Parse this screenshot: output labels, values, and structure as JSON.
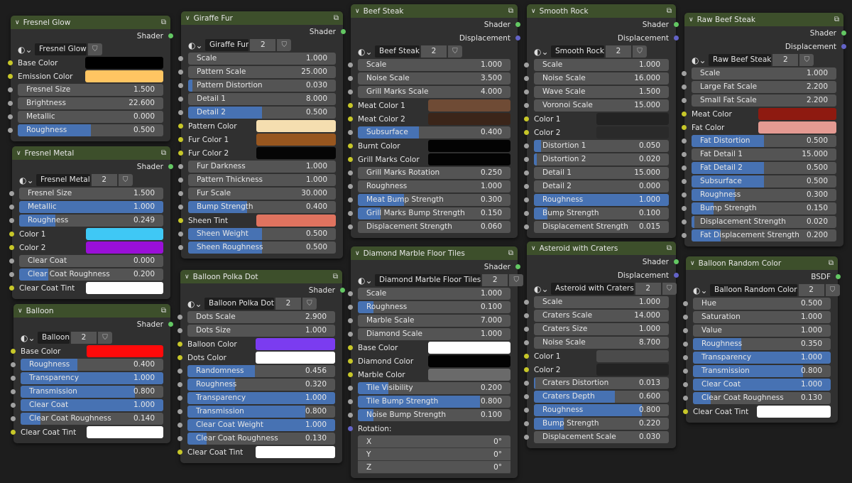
{
  "socket_colors": {
    "float": "#a1a1a1",
    "color": "#c7c729",
    "shader": "#63c763",
    "vector": "#6363c7"
  },
  "accent": "#4772b3",
  "nodes": [
    {
      "title": "Fresnel Glow",
      "outputs": [
        "Shader"
      ],
      "datablock": {
        "name": "Fresnel Glow"
      },
      "rows": [
        {
          "t": "c",
          "l": "Base Color",
          "c": "#000000"
        },
        {
          "t": "c",
          "l": "Emission Color",
          "c": "#ffc562"
        },
        {
          "t": "v",
          "l": "Fresnel Size",
          "v": "1.500"
        },
        {
          "t": "v",
          "l": "Brightness",
          "v": "22.600"
        },
        {
          "t": "v",
          "l": "Metallic",
          "v": "0.000"
        },
        {
          "t": "v",
          "l": "Roughness",
          "v": "0.500",
          "f": 0.5
        }
      ]
    },
    {
      "title": "Fresnel Metal",
      "outputs": [
        "Shader"
      ],
      "datablock": {
        "name": "Fresnel Metal",
        "users": "2"
      },
      "rows": [
        {
          "t": "v",
          "l": "Fresnel Size",
          "v": "1.500"
        },
        {
          "t": "v",
          "l": "Metallic",
          "v": "1.000",
          "f": 1
        },
        {
          "t": "v",
          "l": "Roughness",
          "v": "0.249",
          "f": 0.249
        },
        {
          "t": "c",
          "l": "Color 1",
          "c": "#3fc8f5"
        },
        {
          "t": "c",
          "l": "Color 2",
          "c": "#9a0fd8"
        },
        {
          "t": "v",
          "l": "Clear Coat",
          "v": "0.000"
        },
        {
          "t": "v",
          "l": "Clear Coat Roughness",
          "v": "0.200",
          "f": 0.2
        },
        {
          "t": "c",
          "l": "Clear Coat Tint",
          "c": "#ffffff"
        }
      ]
    },
    {
      "title": "Balloon",
      "outputs": [
        "Shader"
      ],
      "datablock": {
        "name": "Balloon",
        "users": "2"
      },
      "rows": [
        {
          "t": "c",
          "l": "Base Color",
          "c": "#ff0a0a"
        },
        {
          "t": "v",
          "l": "Roughness",
          "v": "0.400",
          "f": 0.4
        },
        {
          "t": "v",
          "l": "Transparency",
          "v": "1.000",
          "f": 1
        },
        {
          "t": "v",
          "l": "Transmission",
          "v": "0.800",
          "f": 0.8
        },
        {
          "t": "v",
          "l": "Clear Coat",
          "v": "1.000",
          "f": 1
        },
        {
          "t": "v",
          "l": "Clear Coat Roughness",
          "v": "0.140",
          "f": 0.14
        },
        {
          "t": "c",
          "l": "Clear Coat Tint",
          "c": "#ffffff"
        }
      ]
    },
    {
      "title": "Giraffe Fur",
      "outputs": [
        "Shader"
      ],
      "datablock": {
        "name": "Giraffe Fur",
        "users": "2"
      },
      "rows": [
        {
          "t": "v",
          "l": "Scale",
          "v": "1.000"
        },
        {
          "t": "v",
          "l": "Pattern Scale",
          "v": "25.000"
        },
        {
          "t": "v",
          "l": "Pattern Distortion",
          "v": "0.030",
          "f": 0.03
        },
        {
          "t": "v",
          "l": "Detail 1",
          "v": "8.000"
        },
        {
          "t": "v",
          "l": "Detail 2",
          "v": "0.500",
          "f": 0.5
        },
        {
          "t": "c",
          "l": "Pattern Color",
          "c": "#f5deb0"
        },
        {
          "t": "c",
          "l": "Fur Color 1",
          "c": "#97561f"
        },
        {
          "t": "c",
          "l": "Fur Color 2",
          "c": "#050505"
        },
        {
          "t": "v",
          "l": "Fur Darkness",
          "v": "1.000"
        },
        {
          "t": "v",
          "l": "Pattern Thickness",
          "v": "1.000"
        },
        {
          "t": "v",
          "l": "Fur Scale",
          "v": "30.000"
        },
        {
          "t": "v",
          "l": "Bump Strength",
          "v": "0.400",
          "f": 0.4
        },
        {
          "t": "c",
          "l": "Sheen Tint",
          "c": "#e0735f"
        },
        {
          "t": "v",
          "l": "Sheen Weight",
          "v": "0.500",
          "f": 0.5
        },
        {
          "t": "v",
          "l": "Sheen Roughness",
          "v": "0.500",
          "f": 0.5
        }
      ]
    },
    {
      "title": "Balloon Polka Dot",
      "outputs": [
        "Shader"
      ],
      "datablock": {
        "name": "Balloon Polka Dot",
        "users": "2"
      },
      "rows": [
        {
          "t": "v",
          "l": "Dots Scale",
          "v": "2.900"
        },
        {
          "t": "v",
          "l": "Dots Size",
          "v": "1.000"
        },
        {
          "t": "c",
          "l": "Balloon Color",
          "c": "#7b3cf0"
        },
        {
          "t": "c",
          "l": "Dots Color",
          "c": "#ffffff"
        },
        {
          "t": "v",
          "l": "Randomness",
          "v": "0.456",
          "f": 0.456
        },
        {
          "t": "v",
          "l": "Roughness",
          "v": "0.320",
          "f": 0.32
        },
        {
          "t": "v",
          "l": "Transparency",
          "v": "1.000",
          "f": 1
        },
        {
          "t": "v",
          "l": "Transmission",
          "v": "0.800",
          "f": 0.8
        },
        {
          "t": "v",
          "l": "Clear Coat Weight",
          "v": "1.000",
          "f": 1
        },
        {
          "t": "v",
          "l": "Clear Coat Roughness",
          "v": "0.130",
          "f": 0.13
        },
        {
          "t": "c",
          "l": "Clear Coat Tint",
          "c": "#ffffff"
        }
      ]
    },
    {
      "title": "Beef Steak",
      "outputs": [
        "Shader",
        "Displacement"
      ],
      "datablock": {
        "name": "Beef Steak",
        "users": "2"
      },
      "rows": [
        {
          "t": "v",
          "l": "Scale",
          "v": "1.000"
        },
        {
          "t": "v",
          "l": "Noise Scale",
          "v": "3.500"
        },
        {
          "t": "v",
          "l": "Grill Marks Scale",
          "v": "4.000"
        },
        {
          "t": "c",
          "l": "Meat Color 1",
          "c": "#6f4b35"
        },
        {
          "t": "c",
          "l": "Meat Color 2",
          "c": "#3b2519"
        },
        {
          "t": "v",
          "l": "Subsurface",
          "v": "0.400",
          "f": 0.4
        },
        {
          "t": "c",
          "l": "Burnt Color",
          "c": "#030303"
        },
        {
          "t": "c",
          "l": "Grill Marks Color",
          "c": "#030303"
        },
        {
          "t": "v",
          "l": "Grill Marks Rotation",
          "v": "0.250"
        },
        {
          "t": "v",
          "l": "Roughness",
          "v": "1.000"
        },
        {
          "t": "v",
          "l": "Meat Bump Strength",
          "v": "0.300",
          "f": 0.3
        },
        {
          "t": "v",
          "l": "Grill Marks Bump Strength",
          "v": "0.150",
          "f": 0.15
        },
        {
          "t": "v",
          "l": "Displacement Strength",
          "v": "0.060"
        }
      ]
    },
    {
      "title": "Diamond Marble Floor Tiles",
      "outputs": [
        "Shader"
      ],
      "datablock": {
        "name": "Diamond Marble Floor Tiles",
        "users": "2"
      },
      "rows": [
        {
          "t": "v",
          "l": "Scale",
          "v": "1.000"
        },
        {
          "t": "v",
          "l": "Roughness",
          "v": "0.100",
          "f": 0.1
        },
        {
          "t": "v",
          "l": "Marble Scale",
          "v": "7.000"
        },
        {
          "t": "v",
          "l": "Diamond Scale",
          "v": "1.000"
        },
        {
          "t": "c",
          "l": "Base Color",
          "c": "#ffffff"
        },
        {
          "t": "c",
          "l": "Diamond Color",
          "c": "#030303"
        },
        {
          "t": "c",
          "l": "Marble Color",
          "c": "#6a6a6a"
        },
        {
          "t": "v",
          "l": "Tile Visibility",
          "v": "0.200",
          "f": 0.2
        },
        {
          "t": "v",
          "l": "Tile Bump Strength",
          "v": "0.800",
          "f": 0.8
        },
        {
          "t": "v",
          "l": "Noise Bump Strength",
          "v": "0.100",
          "f": 0.1
        },
        {
          "t": "p",
          "l": "Rotation:"
        },
        {
          "t": "x",
          "items": [
            {
              "l": "X",
              "v": "0°"
            },
            {
              "l": "Y",
              "v": "0°"
            },
            {
              "l": "Z",
              "v": "0°"
            }
          ]
        }
      ]
    },
    {
      "title": "Smooth Rock",
      "outputs": [
        "Shader",
        "Displacement"
      ],
      "datablock": {
        "name": "Smooth Rock",
        "users": "2"
      },
      "rows": [
        {
          "t": "v",
          "l": "Scale",
          "v": "1.000"
        },
        {
          "t": "v",
          "l": "Noise Scale",
          "v": "16.000"
        },
        {
          "t": "v",
          "l": "Wave Scale",
          "v": "1.500"
        },
        {
          "t": "v",
          "l": "Voronoi Scale",
          "v": "15.000"
        },
        {
          "t": "c",
          "l": "Color 1",
          "c": "#232323"
        },
        {
          "t": "c",
          "l": "Color 2",
          "c": "#2a2a2a"
        },
        {
          "t": "v",
          "l": "Distortion 1",
          "v": "0.050",
          "f": 0.05
        },
        {
          "t": "v",
          "l": "Distortion 2",
          "v": "0.020",
          "f": 0.02
        },
        {
          "t": "v",
          "l": "Detail 1",
          "v": "15.000"
        },
        {
          "t": "v",
          "l": "Detail 2",
          "v": "0.000"
        },
        {
          "t": "v",
          "l": "Roughness",
          "v": "1.000",
          "f": 1
        },
        {
          "t": "v",
          "l": "Bump Strength",
          "v": "0.100",
          "f": 0.1
        },
        {
          "t": "v",
          "l": "Displacement Strength",
          "v": "0.015"
        }
      ]
    },
    {
      "title": "Asteroid with Craters",
      "outputs": [
        "Shader",
        "Displacement"
      ],
      "datablock": {
        "name": "Asteroid with Craters",
        "users": "2"
      },
      "rows": [
        {
          "t": "v",
          "l": "Scale",
          "v": "1.000"
        },
        {
          "t": "v",
          "l": "Craters Scale",
          "v": "14.000"
        },
        {
          "t": "v",
          "l": "Craters Size",
          "v": "1.000"
        },
        {
          "t": "v",
          "l": "Noise Scale",
          "v": "8.700"
        },
        {
          "t": "c",
          "l": "Color 1",
          "c": "#4b4b4b"
        },
        {
          "t": "c",
          "l": "Color 2",
          "c": "#232323"
        },
        {
          "t": "v",
          "l": "Craters Distortion",
          "v": "0.013",
          "f": 0.013
        },
        {
          "t": "v",
          "l": "Craters Depth",
          "v": "0.600",
          "f": 0.6
        },
        {
          "t": "v",
          "l": "Roughness",
          "v": "0.800",
          "f": 0.8
        },
        {
          "t": "v",
          "l": "Bump Strength",
          "v": "0.220",
          "f": 0.22
        },
        {
          "t": "v",
          "l": "Displacement Scale",
          "v": "0.030"
        }
      ]
    },
    {
      "title": "Raw Beef Steak",
      "outputs": [
        "Shader",
        "Displacement"
      ],
      "datablock": {
        "name": "Raw Beef Steak",
        "users": "2"
      },
      "rows": [
        {
          "t": "v",
          "l": "Scale",
          "v": "1.000"
        },
        {
          "t": "v",
          "l": "Large Fat Scale",
          "v": "2.200"
        },
        {
          "t": "v",
          "l": "Small Fat Scale",
          "v": "2.200"
        },
        {
          "t": "c",
          "l": "Meat Color",
          "c": "#8e1a10"
        },
        {
          "t": "c",
          "l": "Fat Color",
          "c": "#e49a92"
        },
        {
          "t": "v",
          "l": "Fat Distortion",
          "v": "0.500",
          "f": 0.5
        },
        {
          "t": "v",
          "l": "Fat Detail 1",
          "v": "15.000"
        },
        {
          "t": "v",
          "l": "Fat Detail 2",
          "v": "0.500",
          "f": 0.5
        },
        {
          "t": "v",
          "l": "Subsurface",
          "v": "0.500",
          "f": 0.5
        },
        {
          "t": "v",
          "l": "Roughness",
          "v": "0.300",
          "f": 0.3
        },
        {
          "t": "v",
          "l": "Bump Strength",
          "v": "0.150",
          "f": 0.15
        },
        {
          "t": "v",
          "l": "Displacement Strength",
          "v": "0.020",
          "f": 0.02
        },
        {
          "t": "v",
          "l": "Fat Displacement Strength",
          "v": "0.200",
          "f": 0.2
        }
      ]
    },
    {
      "title": "Balloon Random Color",
      "outputs": [
        "BSDF"
      ],
      "datablock": {
        "name": "Balloon Random Color",
        "users": "2"
      },
      "rows": [
        {
          "t": "v",
          "l": "Hue",
          "v": "0.500"
        },
        {
          "t": "v",
          "l": "Saturation",
          "v": "1.000"
        },
        {
          "t": "v",
          "l": "Value",
          "v": "1.000"
        },
        {
          "t": "v",
          "l": "Roughness",
          "v": "0.350",
          "f": 0.35
        },
        {
          "t": "v",
          "l": "Transparency",
          "v": "1.000",
          "f": 1
        },
        {
          "t": "v",
          "l": "Transmission",
          "v": "0.800",
          "f": 0.8
        },
        {
          "t": "v",
          "l": "Clear Coat",
          "v": "1.000",
          "f": 1
        },
        {
          "t": "v",
          "l": "Clear Coat Roughness",
          "v": "0.130",
          "f": 0.13
        },
        {
          "t": "c",
          "l": "Clear Coat Tint",
          "c": "#ffffff"
        }
      ]
    }
  ]
}
